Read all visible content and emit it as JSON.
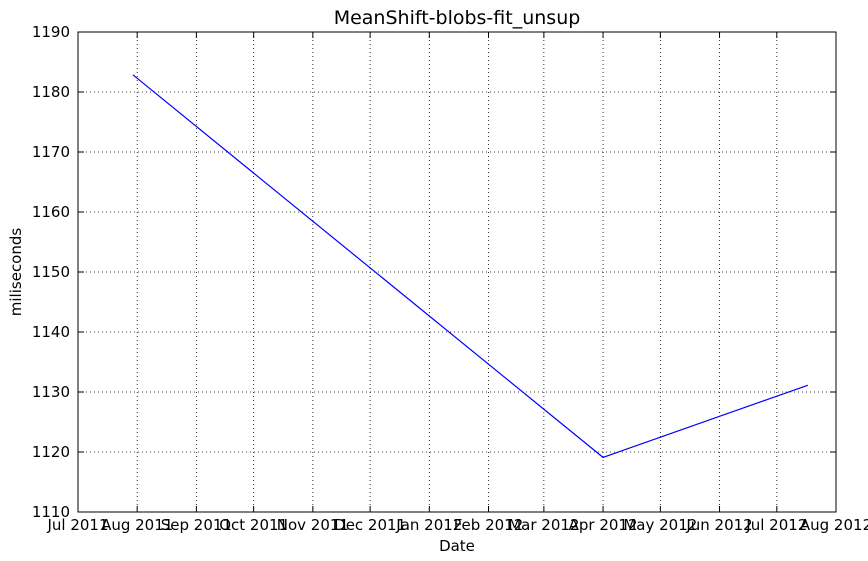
{
  "chart_data": {
    "type": "line",
    "title": "MeanShift-blobs-fit_unsup",
    "xlabel": "Date",
    "ylabel": "miliseconds",
    "x_axis_type": "date",
    "xlim": [
      "2011-07-01",
      "2012-08-01"
    ],
    "ylim": [
      1110,
      1190
    ],
    "x_ticks": [
      {
        "date": "2011-07-01",
        "label": "Jul 2011"
      },
      {
        "date": "2011-08-01",
        "label": "Aug 2011"
      },
      {
        "date": "2011-09-01",
        "label": "Sep 2011"
      },
      {
        "date": "2011-10-01",
        "label": "Oct 2011"
      },
      {
        "date": "2011-11-01",
        "label": "Nov 2011"
      },
      {
        "date": "2011-12-01",
        "label": "Dec 2011"
      },
      {
        "date": "2012-01-01",
        "label": "Jan 2012"
      },
      {
        "date": "2012-02-01",
        "label": "Feb 2012"
      },
      {
        "date": "2012-03-01",
        "label": "Mar 2012"
      },
      {
        "date": "2012-04-01",
        "label": "Apr 2012"
      },
      {
        "date": "2012-05-01",
        "label": "May 2012"
      },
      {
        "date": "2012-06-01",
        "label": "Jun 2012"
      },
      {
        "date": "2012-07-01",
        "label": "Jul 2012"
      },
      {
        "date": "2012-08-01",
        "label": "Aug 2012"
      }
    ],
    "y_ticks": [
      1110,
      1120,
      1130,
      1140,
      1150,
      1160,
      1170,
      1180,
      1190
    ],
    "grid": true,
    "series": [
      {
        "color": "#0000ff",
        "points": [
          {
            "x": "2011-07-30",
            "y": 1182.8
          },
          {
            "x": "2012-04-01",
            "y": 1119.1
          },
          {
            "x": "2012-07-17",
            "y": 1131.1
          }
        ]
      }
    ]
  }
}
